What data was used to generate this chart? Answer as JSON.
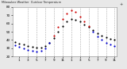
{
  "title": "Milwaukee Weather  Outdoor Temperature",
  "bg_color": "#e8e8e8",
  "plot_bg": "#ffffff",
  "legend_blue_color": "#0000ff",
  "legend_red_color": "#ff0000",
  "hours": [
    0,
    1,
    2,
    3,
    4,
    5,
    6,
    7,
    8,
    9,
    10,
    11,
    12,
    13,
    14,
    15,
    16,
    17,
    18,
    19,
    20,
    21,
    22,
    23
  ],
  "temp_values": [
    38,
    36,
    35,
    33,
    32,
    31,
    31,
    33,
    37,
    42,
    50,
    57,
    62,
    65,
    64,
    62,
    59,
    56,
    52,
    48,
    45,
    43,
    41,
    40
  ],
  "thsw_values": [
    34,
    32,
    30,
    28,
    27,
    26,
    27,
    30,
    37,
    45,
    56,
    65,
    72,
    76,
    74,
    68,
    62,
    57,
    50,
    44,
    40,
    37,
    35,
    33
  ],
  "temp_color": "#000000",
  "thsw_color_low": "#0000cc",
  "thsw_color_high": "#cc0000",
  "ylim_min": 20,
  "ylim_max": 80,
  "yticks": [
    20,
    30,
    40,
    50,
    60,
    70,
    80
  ],
  "ytick_labels": [
    "20",
    "30",
    "40",
    "50",
    "60",
    "70",
    "80"
  ],
  "xtick_positions": [
    1,
    3,
    5,
    7,
    9,
    11,
    13,
    15,
    17,
    19,
    21,
    23
  ],
  "xtick_labels": [
    "1",
    "3",
    "5",
    "7",
    "9",
    "11",
    "1",
    "3",
    "5",
    "7",
    "9",
    "11"
  ],
  "grid_positions": [
    3,
    5,
    7,
    9,
    11,
    13,
    15,
    17,
    19,
    21,
    23
  ],
  "grid_color": "#aaaaaa",
  "dot_size": 2.5
}
